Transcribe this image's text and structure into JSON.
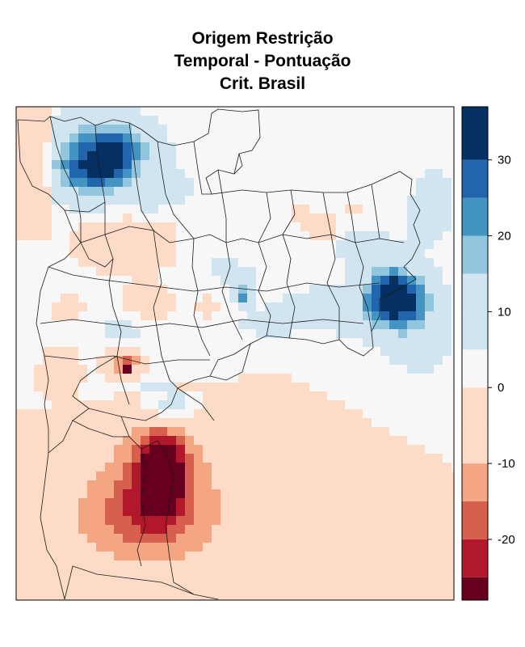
{
  "title_lines": [
    "Origem Restrição",
    "Temporal - Pontuação",
    "Crit. Brasil"
  ],
  "legend": {
    "bins": [
      {
        "min": -28,
        "max": -25,
        "color": "#67001F"
      },
      {
        "min": -25,
        "max": -20,
        "color": "#B2182B"
      },
      {
        "min": -20,
        "max": -15,
        "color": "#D6604D"
      },
      {
        "min": -15,
        "max": -10,
        "color": "#F4A582"
      },
      {
        "min": -10,
        "max": -5,
        "color": "#FDDBC7"
      },
      {
        "min": -5,
        "max": 0,
        "color": "#FDDBC7"
      },
      {
        "min": 0,
        "max": 5,
        "color": "#F7F7F7"
      },
      {
        "min": 5,
        "max": 10,
        "color": "#D1E5F0"
      },
      {
        "min": 10,
        "max": 15,
        "color": "#D1E5F0"
      },
      {
        "min": 15,
        "max": 20,
        "color": "#92C5DE"
      },
      {
        "min": 20,
        "max": 25,
        "color": "#4393C3"
      },
      {
        "min": 25,
        "max": 30,
        "color": "#2166AC"
      },
      {
        "min": 30,
        "max": 37,
        "color": "#053061"
      }
    ],
    "range": [
      -28,
      37
    ],
    "ticks": [
      30,
      20,
      10,
      0,
      -10,
      -20
    ],
    "tick_labels": [
      "30",
      "20",
      "10",
      "0",
      "-10",
      "-20"
    ]
  },
  "colors": {
    "background": "#F7F7F7",
    "boundary": "#1a1a1a"
  }
}
